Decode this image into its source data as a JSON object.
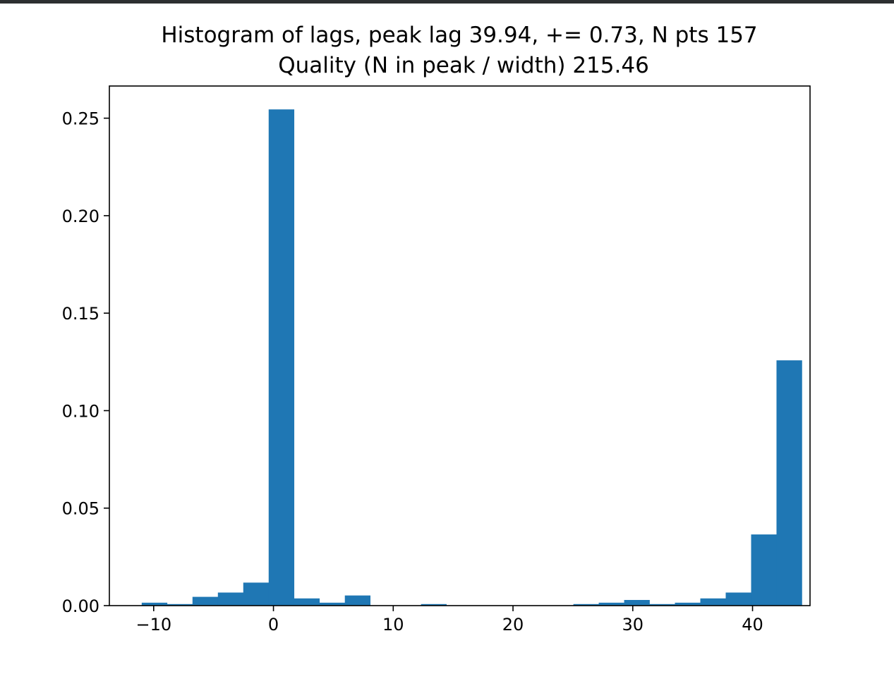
{
  "chart_data": {
    "type": "bar",
    "title": "Histogram of lags, peak lag 39.94, += 0.73, N pts 157",
    "subtitle": "Quality (N in peak / width) 215.46",
    "xlabel": "",
    "ylabel": "",
    "xlim": [
      -13.7,
      44.8
    ],
    "ylim": [
      0,
      0.2665
    ],
    "grid": false,
    "bin_width": 2.12,
    "bin_edges_start": -11.0,
    "values": [
      0.0015,
      0.0008,
      0.0045,
      0.0067,
      0.0118,
      0.2545,
      0.0037,
      0.0015,
      0.0052,
      0.0,
      0.0,
      0.0008,
      0.0,
      0.0,
      0.0,
      0.0,
      0.0,
      0.0008,
      0.0015,
      0.0029,
      0.0008,
      0.0015,
      0.0037,
      0.0067,
      0.0365,
      0.1258
    ],
    "xticks": [
      -10,
      0,
      10,
      20,
      30,
      40
    ],
    "xtick_labels": [
      "−10",
      "0",
      "10",
      "20",
      "30",
      "40"
    ],
    "yticks": [
      0.0,
      0.05,
      0.1,
      0.15,
      0.2,
      0.25
    ],
    "ytick_labels": [
      "0.00",
      "0.05",
      "0.10",
      "0.15",
      "0.20",
      "0.25"
    ],
    "bar_color": "#1f77b4"
  }
}
